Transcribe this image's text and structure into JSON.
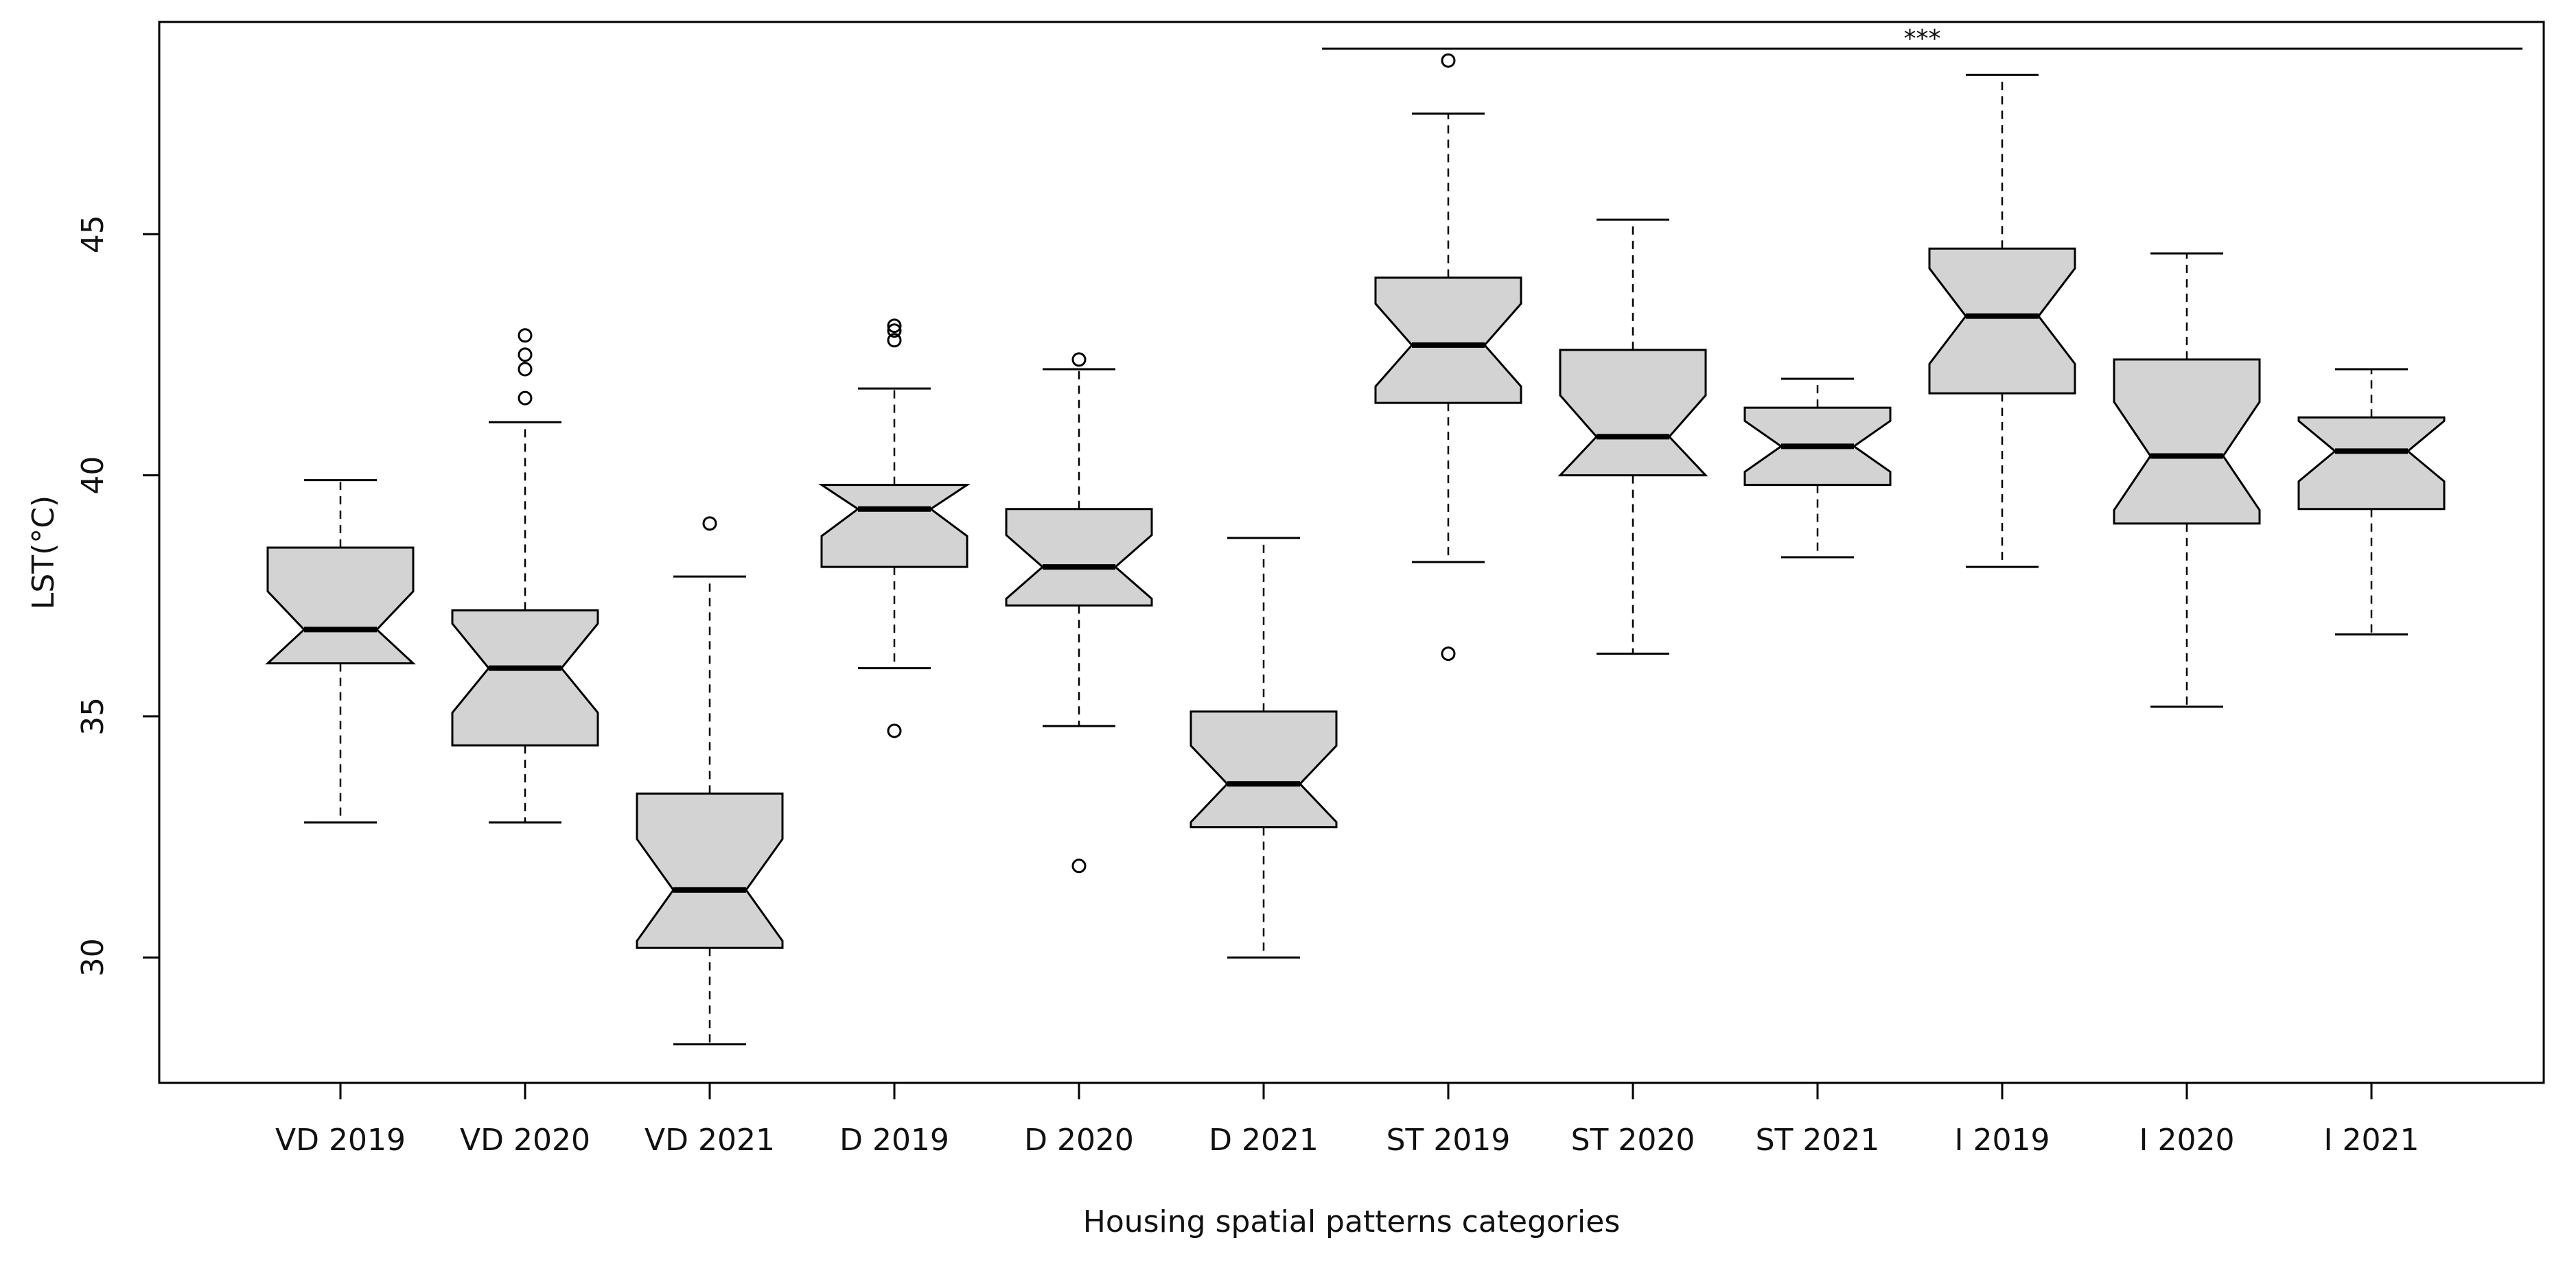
{
  "chart_data": {
    "type": "boxplot",
    "notched": true,
    "title": "",
    "xlabel": "Housing spatial patterns categories",
    "ylabel": "LST(°C)",
    "ylim": [
      27.4,
      49.4
    ],
    "yticks": [
      30,
      35,
      40,
      45
    ],
    "grid": false,
    "box_fill": "#d3d3d3",
    "significance": {
      "label": "***",
      "from": "ST 2019",
      "to": "I 2021"
    },
    "categories": [
      "VD 2019",
      "VD 2020",
      "VD 2021",
      "D 2019",
      "D 2020",
      "D 2021",
      "ST 2019",
      "ST 2020",
      "ST 2021",
      "I 2019",
      "I 2020",
      "I 2021"
    ],
    "boxes": [
      {
        "label": "VD 2019",
        "min": 32.8,
        "q1": 36.1,
        "median": 36.8,
        "q3": 38.5,
        "max": 39.9,
        "outliers": []
      },
      {
        "label": "VD 2020",
        "min": 32.8,
        "q1": 34.4,
        "median": 36.0,
        "q3": 37.2,
        "max": 41.1,
        "outliers": [
          41.6,
          42.2,
          42.5,
          42.9
        ]
      },
      {
        "label": "VD 2021",
        "min": 28.2,
        "q1": 30.2,
        "median": 31.4,
        "q3": 33.4,
        "max": 37.9,
        "outliers": [
          39.0
        ]
      },
      {
        "label": "D 2019",
        "min": 36.0,
        "q1": 38.1,
        "median": 39.3,
        "q3": 39.8,
        "max": 41.8,
        "outliers": [
          34.7,
          42.8,
          43.0,
          43.1
        ]
      },
      {
        "label": "D 2020",
        "min": 34.8,
        "q1": 37.3,
        "median": 38.1,
        "q3": 39.3,
        "max": 42.2,
        "outliers": [
          31.9,
          42.4
        ]
      },
      {
        "label": "D 2021",
        "min": 30.0,
        "q1": 32.7,
        "median": 33.6,
        "q3": 35.1,
        "max": 38.7,
        "outliers": []
      },
      {
        "label": "ST 2019",
        "min": 38.2,
        "q1": 41.5,
        "median": 42.7,
        "q3": 44.1,
        "max": 47.5,
        "outliers": [
          36.3,
          48.6
        ]
      },
      {
        "label": "ST 2020",
        "min": 36.3,
        "q1": 40.0,
        "median": 40.8,
        "q3": 42.6,
        "max": 45.3,
        "outliers": []
      },
      {
        "label": "ST 2021",
        "min": 38.3,
        "q1": 39.8,
        "median": 40.6,
        "q3": 41.4,
        "max": 42.0,
        "outliers": []
      },
      {
        "label": "I 2019",
        "min": 38.1,
        "q1": 41.7,
        "median": 43.3,
        "q3": 44.7,
        "max": 48.3,
        "outliers": []
      },
      {
        "label": "I 2020",
        "min": 35.2,
        "q1": 39.0,
        "median": 40.4,
        "q3": 42.4,
        "max": 44.6,
        "outliers": []
      },
      {
        "label": "I 2021",
        "min": 36.7,
        "q1": 39.3,
        "median": 40.5,
        "q3": 41.2,
        "max": 42.2,
        "outliers": []
      }
    ]
  }
}
